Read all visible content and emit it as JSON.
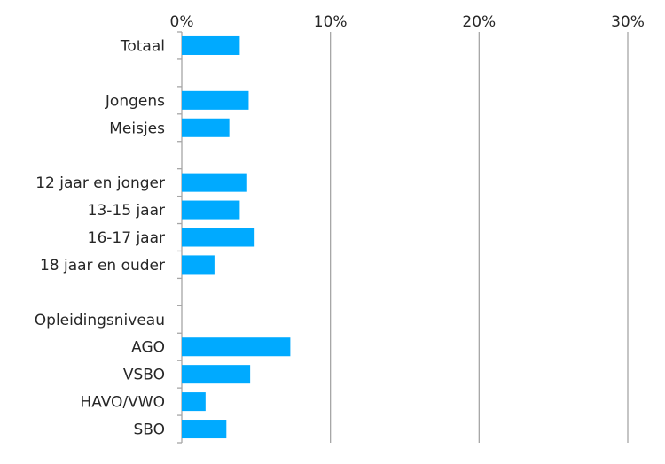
{
  "chart_data": {
    "type": "bar",
    "orientation": "horizontal",
    "categories": [
      "Totaal",
      "",
      "Jongens",
      "Meisjes",
      "",
      "12 jaar en jonger",
      "13-15 jaar",
      "16-17 jaar",
      "18 jaar en ouder",
      "",
      "Opleidingsniveau",
      "AGO",
      "VSBO",
      "HAVO/VWO",
      "SBO"
    ],
    "values": [
      3.9,
      null,
      4.5,
      3.2,
      null,
      4.4,
      3.9,
      4.9,
      2.2,
      null,
      null,
      7.3,
      4.6,
      1.6,
      3.0
    ],
    "xlim": [
      0,
      30
    ],
    "x_ticks": [
      "0%",
      "10%",
      "20%",
      "30%"
    ],
    "x_axis_position": "top",
    "grid": true,
    "bar_color": "#00aaff",
    "gridline_color": "#a6a6a6"
  }
}
